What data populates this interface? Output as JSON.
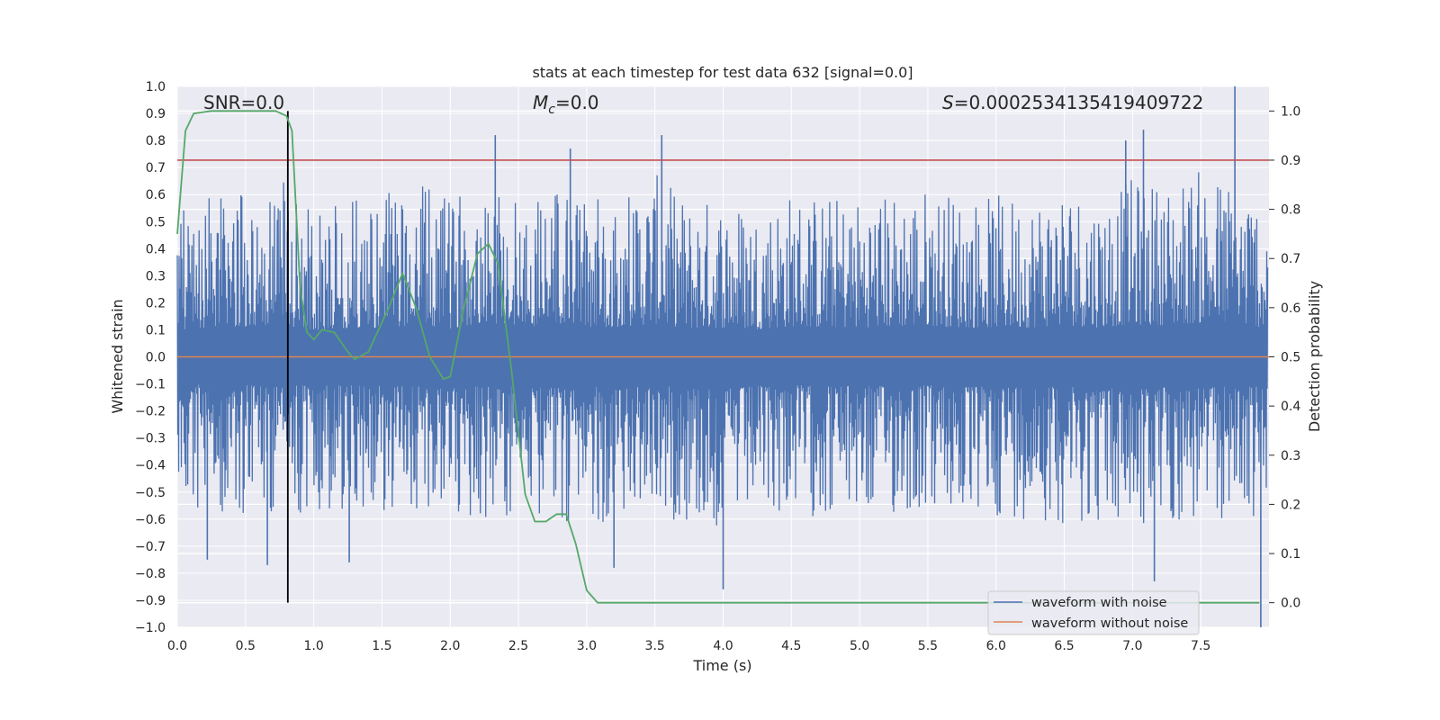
{
  "chart_data": {
    "type": "line",
    "title": "stats at each timestep for test data 632 [signal=0.0]",
    "xlabel": "Time (s)",
    "ylabel_left": "Whitened strain",
    "ylabel_right": "Detection probability",
    "xlim": [
      0.0,
      8.0
    ],
    "ylim_left": [
      -1.0,
      1.0
    ],
    "ylim_right": [
      -0.05,
      1.05
    ],
    "x_ticks": [
      "0.0",
      "0.5",
      "1.0",
      "1.5",
      "2.0",
      "2.5",
      "3.0",
      "3.5",
      "4.0",
      "4.5",
      "5.0",
      "5.5",
      "6.0",
      "6.5",
      "7.0",
      "7.5"
    ],
    "y_ticks_left": [
      "1.0",
      "0.9",
      "0.8",
      "0.7",
      "0.6",
      "0.5",
      "0.4",
      "0.3",
      "0.2",
      "0.1",
      "0.0",
      "−0.1",
      "−0.2",
      "−0.3",
      "−0.4",
      "−0.5",
      "−0.6",
      "−0.7",
      "−0.8",
      "−0.9",
      "−1.0"
    ],
    "y_ticks_right": [
      "1.0",
      "0.9",
      "0.8",
      "0.7",
      "0.6",
      "0.5",
      "0.4",
      "0.3",
      "0.2",
      "0.1",
      "0.0"
    ],
    "grid": true,
    "legend_position": "bottom-right",
    "colors": {
      "background": "#eaeaf2",
      "noise": "#4c72b0",
      "clean": "#dd8452",
      "probability": "#55a868",
      "threshold": "#c44e52",
      "marker": "#000000"
    },
    "annotations": {
      "snr": "SNR=0.0",
      "mc_symbol": "M",
      "mc_sub": "c",
      "mc_value": "=0.0",
      "s_symbol": "S",
      "s_value": "=0.0002534135419409722"
    },
    "threshold_probability": 0.9,
    "marker_time": 0.81,
    "marker_probability_range": [
      0.0,
      1.0
    ],
    "series": [
      {
        "name": "waveform with noise",
        "axis": "left",
        "envelope": {
          "x": [
            0.0,
            0.25,
            0.5,
            0.75,
            1.0,
            1.25,
            1.5,
            1.75,
            2.0,
            2.25,
            2.5,
            2.75,
            3.0,
            3.25,
            3.5,
            3.75,
            4.0,
            4.25,
            4.5,
            4.75,
            5.0,
            5.25,
            5.5,
            5.75,
            6.0,
            6.25,
            6.5,
            6.75,
            7.0,
            7.25,
            7.5,
            7.75,
            7.99
          ],
          "upper": [
            0.55,
            0.6,
            0.62,
            0.66,
            0.55,
            0.58,
            0.6,
            0.65,
            0.58,
            0.72,
            0.6,
            0.66,
            0.6,
            0.62,
            0.68,
            0.58,
            0.6,
            0.56,
            0.62,
            0.6,
            0.6,
            0.62,
            0.64,
            0.6,
            0.6,
            0.6,
            0.65,
            0.6,
            0.66,
            0.65,
            0.7,
            0.66,
            0.6
          ],
          "lower": [
            -0.5,
            -0.6,
            -0.58,
            -0.62,
            -0.56,
            -0.58,
            -0.6,
            -0.58,
            -0.62,
            -0.6,
            -0.6,
            -0.64,
            -0.62,
            -0.6,
            -0.6,
            -0.62,
            -0.66,
            -0.6,
            -0.58,
            -0.6,
            -0.6,
            -0.6,
            -0.58,
            -0.62,
            -0.6,
            -0.6,
            -0.62,
            -0.62,
            -0.66,
            -0.62,
            -0.64,
            -0.6,
            -0.62
          ]
        },
        "spikes": [
          {
            "x": 0.22,
            "y": -0.75
          },
          {
            "x": 0.66,
            "y": -0.77
          },
          {
            "x": 1.26,
            "y": -0.76
          },
          {
            "x": 2.33,
            "y": 0.82
          },
          {
            "x": 2.88,
            "y": 0.77
          },
          {
            "x": 3.2,
            "y": -0.78
          },
          {
            "x": 3.55,
            "y": 0.82
          },
          {
            "x": 4.0,
            "y": -0.86
          },
          {
            "x": 6.95,
            "y": 0.8
          },
          {
            "x": 7.08,
            "y": 0.84
          },
          {
            "x": 7.16,
            "y": -0.83
          },
          {
            "x": 7.75,
            "y": 1.0
          },
          {
            "x": 7.94,
            "y": -1.0
          }
        ]
      },
      {
        "name": "waveform without noise",
        "axis": "left",
        "x": [
          0.0,
          8.0
        ],
        "y": [
          0.0,
          0.0
        ]
      },
      {
        "name": "",
        "axis": "right",
        "x": [
          0.0,
          0.06,
          0.12,
          0.25,
          0.5,
          0.72,
          0.8,
          0.84,
          0.9,
          0.95,
          1.0,
          1.06,
          1.15,
          1.25,
          1.3,
          1.4,
          1.55,
          1.65,
          1.75,
          1.85,
          1.95,
          2.0,
          2.1,
          2.2,
          2.28,
          2.35,
          2.45,
          2.55,
          2.62,
          2.7,
          2.78,
          2.85,
          2.92,
          3.0,
          3.08,
          3.2,
          7.93
        ],
        "y": [
          0.75,
          0.96,
          0.995,
          1.0,
          1.0,
          1.0,
          0.99,
          0.96,
          0.64,
          0.55,
          0.535,
          0.555,
          0.55,
          0.51,
          0.495,
          0.51,
          0.6,
          0.67,
          0.6,
          0.5,
          0.455,
          0.46,
          0.6,
          0.71,
          0.73,
          0.69,
          0.47,
          0.22,
          0.165,
          0.165,
          0.18,
          0.18,
          0.12,
          0.025,
          0.0,
          0.0,
          0.0
        ]
      }
    ]
  }
}
